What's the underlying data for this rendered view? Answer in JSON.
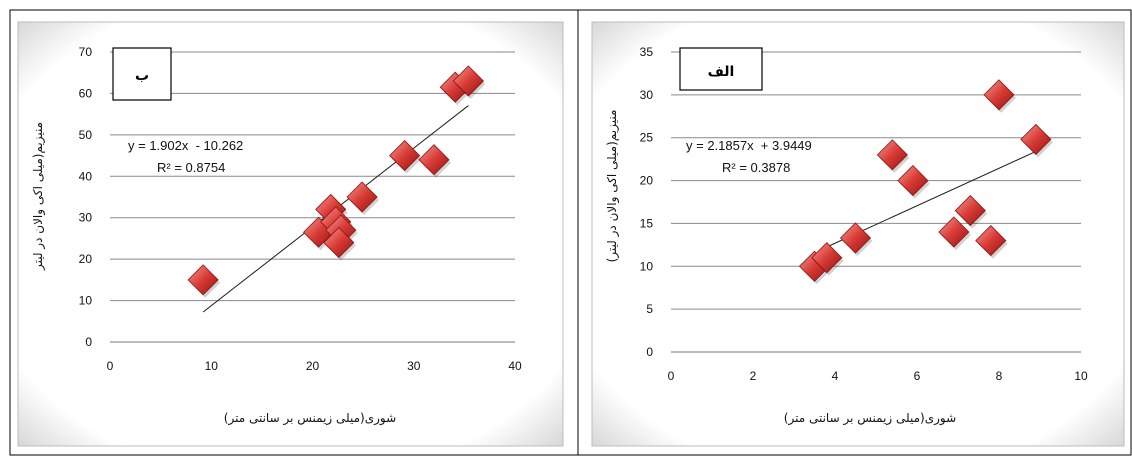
{
  "chart_data": [
    {
      "type": "scatter",
      "panel_label": "ب",
      "xlabel": "شوری(میلی زیمنس بر سانتی متر)",
      "ylabel": "منیزیم(میلی اکی والان در لیتر",
      "xlim": [
        0,
        40
      ],
      "ylim": [
        0,
        70
      ],
      "x_ticks": [
        "0",
        "10",
        "20",
        "30",
        "40"
      ],
      "y_ticks": [
        "0",
        "10",
        "20",
        "30",
        "40",
        "50",
        "60",
        "70"
      ],
      "grid": "horizontal",
      "points": [
        {
          "x": 9.2,
          "y": 15
        },
        {
          "x": 20.6,
          "y": 26.5
        },
        {
          "x": 21.8,
          "y": 32
        },
        {
          "x": 22.3,
          "y": 29
        },
        {
          "x": 22.8,
          "y": 27
        },
        {
          "x": 22.6,
          "y": 24
        },
        {
          "x": 24.9,
          "y": 35
        },
        {
          "x": 29.1,
          "y": 45
        },
        {
          "x": 32.0,
          "y": 44
        },
        {
          "x": 34.1,
          "y": 61.5
        },
        {
          "x": 35.4,
          "y": 63
        }
      ],
      "trendline": {
        "slope": 1.902,
        "intercept": -10.262,
        "x_range": [
          9.2,
          35.4
        ]
      },
      "equation_text": "y = 1.902x  - 10.262",
      "r2_text": "R² = 0.8754"
    },
    {
      "type": "scatter",
      "panel_label": "الف",
      "xlabel": "شوری(میلی زیمنس بر سانتی متر)",
      "ylabel": "منیزیم(میلی اکی والان در لیتر)",
      "xlim": [
        0,
        10
      ],
      "ylim": [
        0,
        35
      ],
      "x_ticks": [
        "0",
        "2",
        "4",
        "6",
        "8",
        "10"
      ],
      "y_ticks": [
        "0",
        "5",
        "10",
        "15",
        "20",
        "25",
        "30",
        "35"
      ],
      "grid": "horizontal",
      "points": [
        {
          "x": 3.5,
          "y": 10
        },
        {
          "x": 3.8,
          "y": 11
        },
        {
          "x": 4.5,
          "y": 13.3
        },
        {
          "x": 5.4,
          "y": 23
        },
        {
          "x": 5.9,
          "y": 20
        },
        {
          "x": 6.9,
          "y": 14
        },
        {
          "x": 7.3,
          "y": 16.5
        },
        {
          "x": 7.8,
          "y": 13
        },
        {
          "x": 8.0,
          "y": 30
        },
        {
          "x": 8.9,
          "y": 24.8
        }
      ],
      "trendline": {
        "slope": 2.1857,
        "intercept": 3.9449,
        "x_range": [
          3.6,
          8.9
        ]
      },
      "equation_text": "y = 2.1857x  + 3.9449",
      "r2_text": "R² = 0.3878"
    }
  ],
  "colors": {
    "marker_fill": "#d83a35",
    "marker_dark": "#8e1411",
    "marker_light": "#f79c96",
    "grid": "#8a8a8a",
    "trendline": "#1a1a1a"
  }
}
